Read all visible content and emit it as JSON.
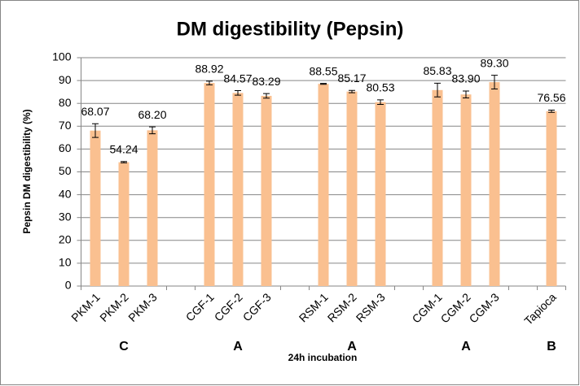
{
  "chart_data": {
    "type": "bar",
    "title": "DM digestibility (Pepsin)",
    "y_label": "Pepsin DM digestibility (%)",
    "x_label": "24h incubation",
    "categories": [
      "PKM-1",
      "PKM-2",
      "PKM-3",
      null,
      "CGF-1",
      "CGF-2",
      "CGF-3",
      null,
      "RSM-1",
      "RSM-2",
      "RSM-3",
      null,
      "CGM-1",
      "CGM-2",
      "CGM-3",
      null,
      "Tapioca"
    ],
    "values": [
      68.07,
      54.24,
      68.2,
      null,
      88.92,
      84.57,
      83.29,
      null,
      88.55,
      85.17,
      80.53,
      null,
      85.83,
      83.9,
      89.3,
      null,
      76.56
    ],
    "value_labels": [
      "68.07",
      "54.24",
      "68.20",
      null,
      "88.92",
      "84.57",
      "83.29",
      null,
      "88.55",
      "85.17",
      "80.53",
      null,
      "85.83",
      "83.90",
      "89.30",
      null,
      "76.56"
    ],
    "errors": [
      3,
      0.3,
      1.5,
      null,
      0.8,
      1,
      1,
      null,
      0.2,
      0.5,
      1,
      null,
      3,
      1.5,
      3,
      null,
      0.5
    ],
    "group_labels": [
      "C",
      "A",
      "A",
      "A",
      "B"
    ],
    "color": "#fac090",
    "ylim": [
      0,
      100
    ],
    "yticks": [
      0,
      10,
      20,
      30,
      40,
      50,
      60,
      70,
      80,
      90,
      100
    ],
    "grid": true
  }
}
